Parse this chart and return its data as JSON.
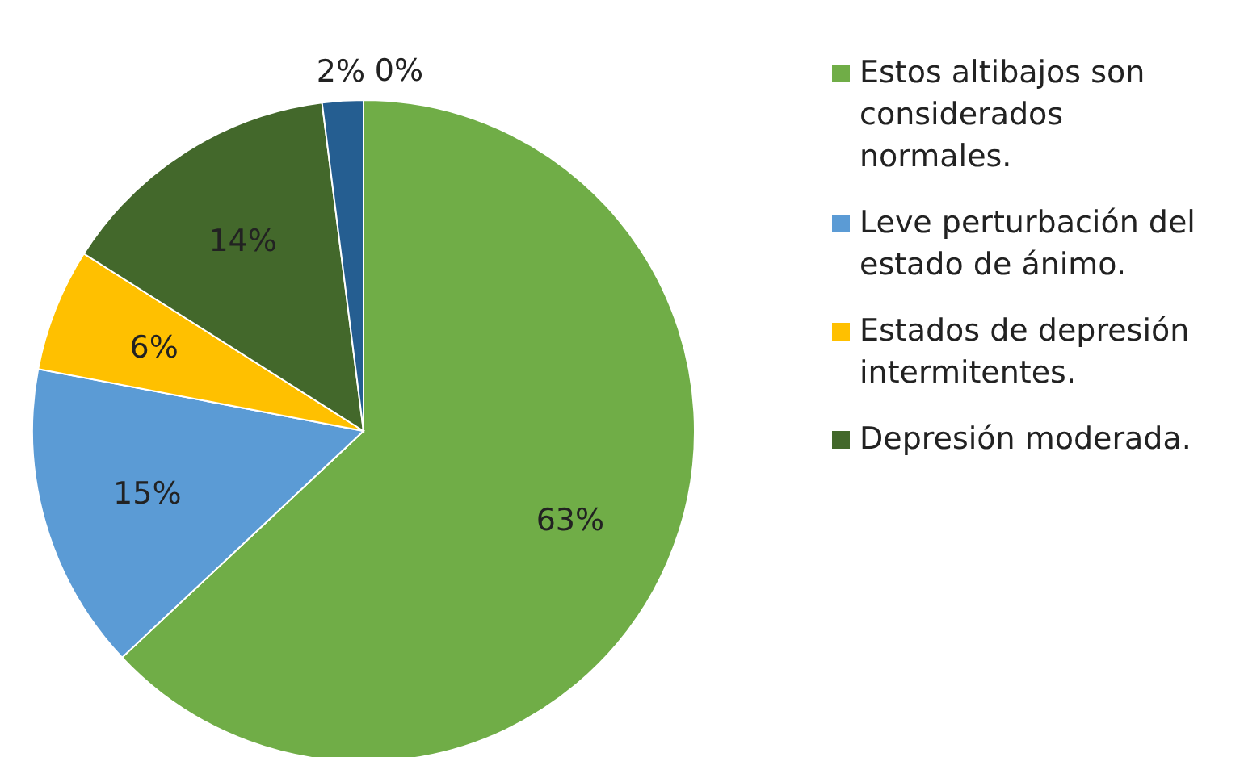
{
  "chart_data": {
    "type": "pie",
    "categories": [
      "Estos altibajos son considerados normales.",
      "Leve perturbación del estado de ánimo.",
      "Estados de depresión intermitentes.",
      "Depresión moderada.",
      null,
      null
    ],
    "values": [
      63,
      15,
      6,
      14,
      2,
      0
    ],
    "colors": [
      "#70ad47",
      "#5b9bd5",
      "#ffc000",
      "#43682b",
      "#255e91",
      "#9e480e"
    ],
    "value_labels": [
      "63%",
      "15%",
      "6%",
      "14%",
      "2%",
      "0%"
    ],
    "legend": "right"
  }
}
